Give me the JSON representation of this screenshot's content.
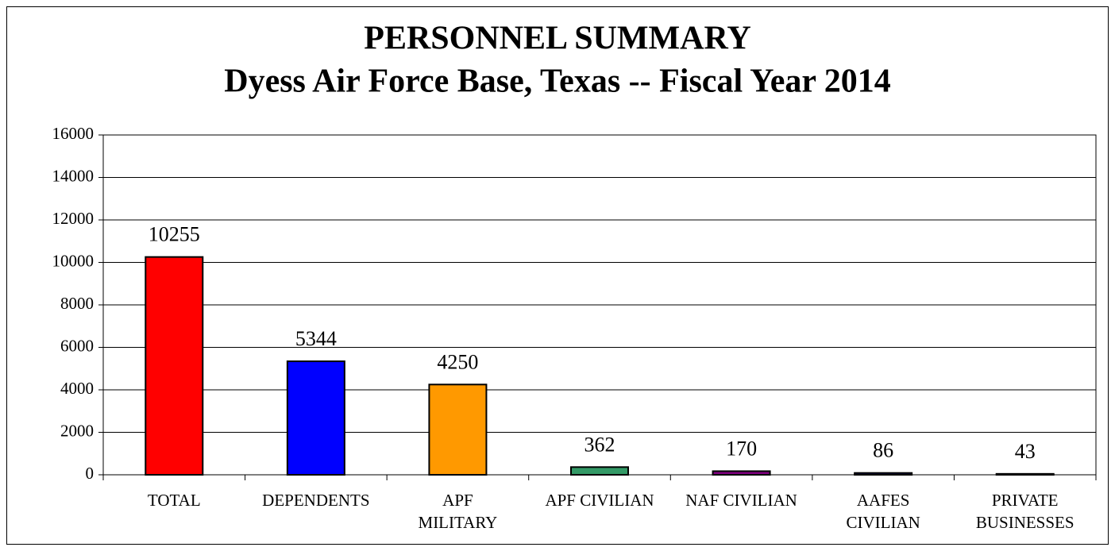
{
  "chart_data": {
    "type": "bar",
    "title": "PERSONNEL SUMMARY",
    "subtitle": "Dyess Air Force Base, Texas -- Fiscal Year 2014",
    "categories": [
      "TOTAL",
      "DEPENDENTS",
      "APF\nMILITARY",
      "APF CIVILIAN",
      "NAF CIVILIAN",
      "AAFES\nCIVILIAN",
      "PRIVATE\nBUSINESSES"
    ],
    "values": [
      10255,
      5344,
      4250,
      362,
      170,
      86,
      43
    ],
    "colors": [
      "#ff0000",
      "#0000ff",
      "#ff9900",
      "#339966",
      "#800080",
      "#000080",
      "#000000"
    ],
    "ylim": [
      0,
      16000
    ],
    "yticks": [
      0,
      2000,
      4000,
      6000,
      8000,
      10000,
      12000,
      14000,
      16000
    ],
    "grid": true
  }
}
